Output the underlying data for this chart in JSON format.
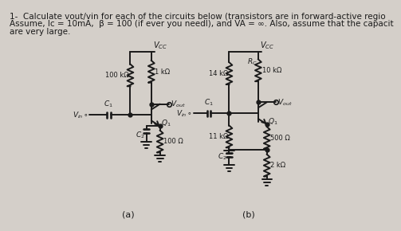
{
  "bg_color": "#d4cfc9",
  "text_color": "#1a1a1a",
  "title_line1": "1-  Calculate vout/vin for each of the circuits below (transistors are in forward-active regio",
  "title_line2": "Assume, Ic = 10mA,  β = 100 (if ever you needl), and VA = ∞. Also, assume that the capacit",
  "title_line3": "are very large.",
  "label_a": "(a)",
  "label_b": "(b)"
}
